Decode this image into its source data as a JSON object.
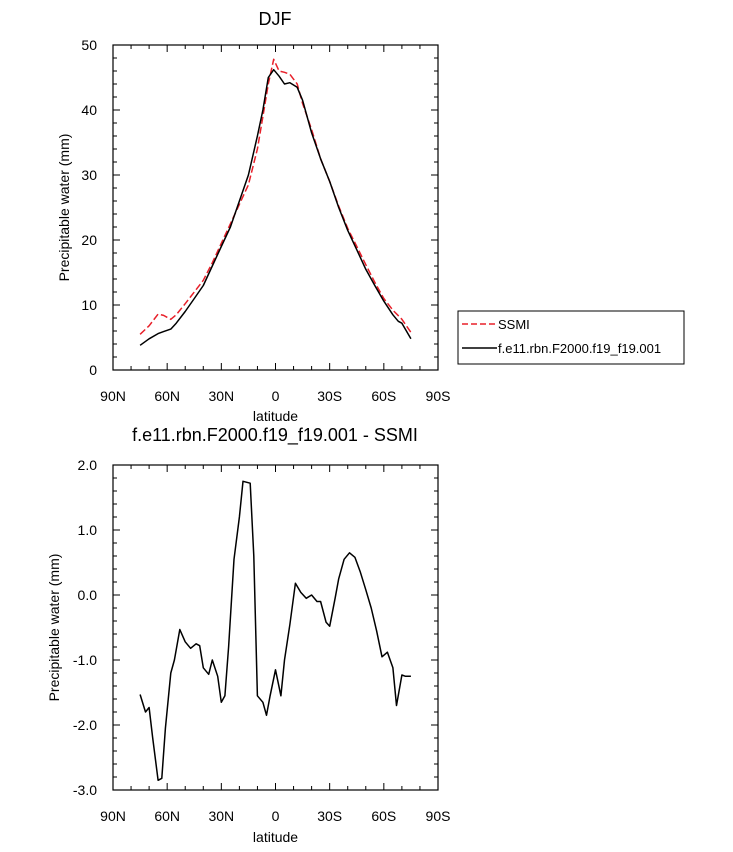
{
  "chart_data": [
    {
      "type": "line",
      "title": "DJF",
      "xlabel": "latitude",
      "ylabel": "Precipitable water (mm)",
      "xlim": [
        -90,
        90
      ],
      "ylim": [
        0,
        50
      ],
      "xticks": [
        -90,
        -60,
        -30,
        0,
        30,
        60,
        90
      ],
      "xticklabels": [
        "90N",
        "60N",
        "30N",
        "0",
        "30S",
        "60S",
        "90S"
      ],
      "yticks": [
        0,
        10,
        20,
        30,
        40,
        50
      ],
      "yticklabels": [
        "0",
        "10",
        "20",
        "30",
        "40",
        "50"
      ],
      "series": [
        {
          "name": "SSMI",
          "color": "#e8202a",
          "dash": true,
          "x": [
            -75,
            -70,
            -65,
            -62,
            -58,
            -55,
            -50,
            -45,
            -40,
            -35,
            -30,
            -25,
            -20,
            -15,
            -10,
            -7,
            -4,
            -1,
            2,
            5,
            8,
            12,
            15,
            20,
            25,
            30,
            35,
            40,
            45,
            50,
            55,
            60,
            65,
            70,
            75
          ],
          "y": [
            5.5,
            6.8,
            8.6,
            8.4,
            7.8,
            8.5,
            10.2,
            12,
            13.8,
            16.5,
            19.5,
            22.5,
            25.5,
            28.5,
            34,
            39,
            44,
            47.8,
            46,
            45.8,
            45.5,
            44,
            41,
            37,
            32.5,
            29,
            25.2,
            21.8,
            19,
            16.2,
            13.5,
            11,
            9.2,
            7.8,
            5.8
          ]
        },
        {
          "name": "f.e11.rbn.F2000.f19_f19.001",
          "color": "#000000",
          "dash": false,
          "x": [
            -75,
            -70,
            -65,
            -62,
            -58,
            -55,
            -50,
            -45,
            -40,
            -35,
            -30,
            -25,
            -20,
            -15,
            -10,
            -7,
            -4,
            -1,
            2,
            5,
            8,
            12,
            15,
            20,
            25,
            30,
            35,
            40,
            45,
            50,
            55,
            60,
            65,
            68,
            70,
            75
          ],
          "y": [
            3.8,
            4.8,
            5.6,
            5.9,
            6.3,
            7.2,
            9,
            11,
            13,
            16,
            19,
            22,
            26,
            30,
            36,
            40,
            45,
            46.2,
            45.2,
            44,
            44.2,
            43.5,
            41.5,
            36.5,
            32.5,
            29,
            25,
            21.5,
            18.5,
            15.5,
            13,
            10.6,
            8.5,
            7.5,
            7.2,
            4.8
          ]
        }
      ],
      "legend": "right"
    },
    {
      "type": "line",
      "title": "f.e11.rbn.F2000.f19_f19.001 - SSMI",
      "xlabel": "latitude",
      "ylabel": "Precipitable water (mm)",
      "xlim": [
        -90,
        90
      ],
      "ylim": [
        -3.0,
        2.0
      ],
      "xticks": [
        -90,
        -60,
        -30,
        0,
        30,
        60,
        90
      ],
      "xticklabels": [
        "90N",
        "60N",
        "30N",
        "0",
        "30S",
        "60S",
        "90S"
      ],
      "yticks": [
        -3.0,
        -2.0,
        -1.0,
        0.0,
        1.0,
        2.0
      ],
      "yticklabels": [
        "-3.0",
        "-2.0",
        "-1.0",
        "0.0",
        "1.0",
        "2.0"
      ],
      "series": [
        {
          "name": "f.e11.rbn.F2000.f19_f19.001 - SSMI",
          "color": "#000000",
          "dash": false,
          "x": [
            -75,
            -72,
            -70,
            -68,
            -65,
            -63,
            -61,
            -58,
            -56,
            -53,
            -50,
            -47,
            -44,
            -42,
            -40,
            -37,
            -35,
            -32,
            -30,
            -28,
            -26,
            -23,
            -20,
            -18,
            -14,
            -12,
            -10,
            -7,
            -5,
            -3,
            0,
            3,
            5,
            8,
            11,
            14,
            17,
            20,
            23,
            25,
            28,
            30,
            33,
            35,
            38,
            41,
            44,
            47,
            50,
            53,
            56,
            59,
            62,
            65,
            67,
            70,
            72,
            75
          ],
          "y": [
            -1.53,
            -1.8,
            -1.73,
            -2.2,
            -2.85,
            -2.82,
            -2.05,
            -1.2,
            -1.0,
            -0.53,
            -0.72,
            -0.82,
            -0.75,
            -0.78,
            -1.12,
            -1.22,
            -1.0,
            -1.25,
            -1.65,
            -1.55,
            -0.8,
            0.55,
            1.2,
            1.75,
            1.72,
            0.6,
            -1.55,
            -1.65,
            -1.85,
            -1.55,
            -1.15,
            -1.55,
            -1.0,
            -0.45,
            0.18,
            0.04,
            -0.05,
            0.0,
            -0.1,
            -0.1,
            -0.42,
            -0.48,
            -0.05,
            0.25,
            0.55,
            0.65,
            0.58,
            0.35,
            0.08,
            -0.2,
            -0.55,
            -0.95,
            -0.88,
            -1.12,
            -1.7,
            -1.23,
            -1.25,
            -1.25
          ]
        }
      ]
    }
  ]
}
